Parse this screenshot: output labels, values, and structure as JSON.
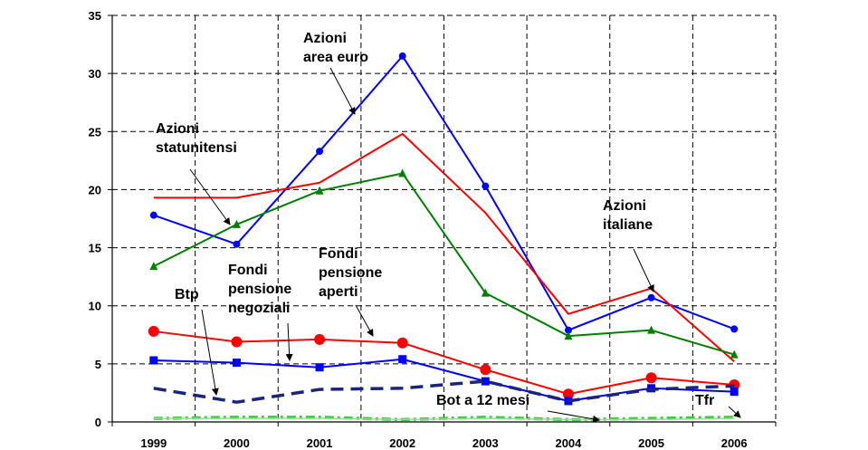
{
  "chart_data": {
    "type": "line",
    "title": "",
    "xlabel": "",
    "ylabel": "",
    "categories": [
      "1999",
      "2000",
      "2001",
      "2002",
      "2003",
      "2004",
      "2005",
      "2006"
    ],
    "ylim": [
      0,
      35
    ],
    "yticks": [
      0,
      5,
      10,
      15,
      20,
      25,
      30,
      35
    ],
    "grid": true,
    "legend": "none",
    "series": [
      {
        "key": "azioni_area_euro",
        "values": [
          17.8,
          15.3,
          23.3,
          31.5,
          20.3,
          7.9,
          10.7,
          8.0
        ],
        "color": "#0000ff",
        "dash": "solid",
        "width": 2,
        "marker": "circle"
      },
      {
        "key": "azioni_italiane",
        "values": [
          19.3,
          19.3,
          20.6,
          24.8,
          18.0,
          9.3,
          11.5,
          5.2
        ],
        "color": "#ff0000",
        "dash": "solid",
        "width": 2,
        "marker": "none"
      },
      {
        "key": "azioni_statunitensi",
        "values": [
          13.4,
          17.0,
          19.9,
          21.4,
          11.1,
          7.4,
          7.9,
          5.8
        ],
        "color": "#008000",
        "dash": "solid",
        "width": 2,
        "marker": "triangle"
      },
      {
        "key": "fondi_pensione_aperti",
        "values": [
          7.8,
          6.9,
          7.1,
          6.8,
          4.5,
          2.4,
          3.8,
          3.2
        ],
        "color": "#ff0000",
        "dash": "solid",
        "width": 2,
        "marker": "bigcircle"
      },
      {
        "key": "fondi_pensione_negoziali",
        "values": [
          5.3,
          5.1,
          4.7,
          5.4,
          3.5,
          1.8,
          2.9,
          2.6
        ],
        "color": "#0000ff",
        "dash": "solid",
        "width": 2,
        "marker": "square"
      },
      {
        "key": "btp",
        "values": [
          2.9,
          1.7,
          2.8,
          2.9,
          3.5,
          1.8,
          2.8,
          3.1
        ],
        "color": "#1a237e",
        "dash": "14,8",
        "width": 3.5,
        "marker": "none"
      },
      {
        "key": "bot_12_mesi",
        "values": [
          0.3,
          0.4,
          0.4,
          0.2,
          0.4,
          0.2,
          0.3,
          0.4
        ],
        "color": "#33cc33",
        "dash": "10,4,3,4",
        "width": 3.5,
        "marker": "none"
      },
      {
        "key": "tfr",
        "values": [
          0.3,
          0.3,
          0.3,
          0.2,
          0.3,
          0.2,
          0.2,
          0.3
        ],
        "color": "#99dd99",
        "dash": "solid",
        "width": 1.5,
        "marker": "none"
      }
    ],
    "annotations": [
      {
        "key": "azioni_area_euro",
        "lines": [
          "Azioni",
          "area euro"
        ]
      },
      {
        "key": "azioni_statunitensi",
        "lines": [
          "Azioni",
          "statunitensi"
        ]
      },
      {
        "key": "azioni_italiane",
        "lines": [
          "Azioni",
          "italiane"
        ]
      },
      {
        "key": "fondi_pensione_aperti",
        "lines": [
          "Fondi",
          "pensione",
          "aperti"
        ]
      },
      {
        "key": "fondi_pensione_negoziali",
        "lines": [
          "Fondi",
          "pensione",
          "negoziali"
        ]
      },
      {
        "key": "btp",
        "lines": [
          "Btp"
        ]
      },
      {
        "key": "bot_12_mesi",
        "lines": [
          "Bot a 12 mesi"
        ]
      },
      {
        "key": "tfr",
        "lines": [
          "Tfr"
        ]
      }
    ]
  }
}
